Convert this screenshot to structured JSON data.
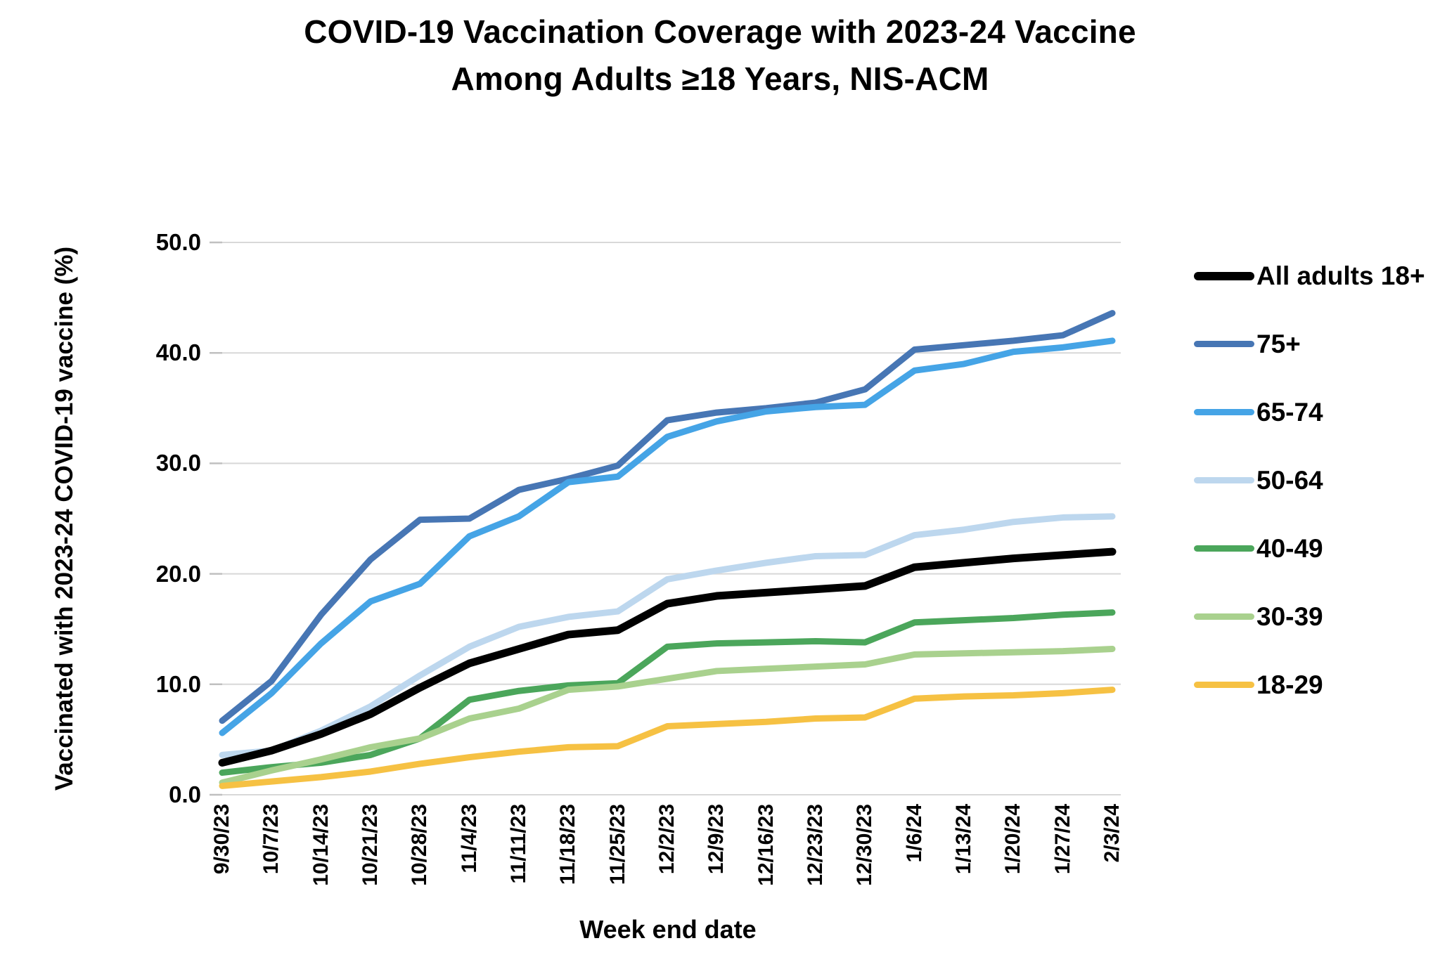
{
  "title": {
    "line1": "COVID-19 Vaccination Coverage with 2023-24 Vaccine",
    "line2": "Among Adults ≥18 Years, NIS-ACM"
  },
  "chart_data": {
    "type": "line",
    "title": "COVID-19 Vaccination Coverage with 2023-24 Vaccine Among Adults ≥18 Years, NIS-ACM",
    "xlabel": "Week end date",
    "ylabel": "Vaccinated with 2023-24 COVID-19 vaccine (%)",
    "ylim": [
      0,
      50
    ],
    "ytick_step": 10,
    "ytick_labels": [
      "0.0",
      "10.0",
      "20.0",
      "30.0",
      "40.0",
      "50.0"
    ],
    "grid": "horizontal",
    "gridline_color": "#d8d8d8",
    "tick_color": "#c0c0c0",
    "legend_position": "right",
    "categories": [
      "9/30/23",
      "10/7/23",
      "10/14/23",
      "10/21/23",
      "10/28/23",
      "11/4/23",
      "11/11/23",
      "11/18/23",
      "11/25/23",
      "12/2/23",
      "12/9/23",
      "12/16/23",
      "12/23/23",
      "12/30/23",
      "1/6/24",
      "1/13/24",
      "1/20/24",
      "1/27/24",
      "2/3/24"
    ],
    "series": [
      {
        "name": "All adults 18+",
        "color": "#000000",
        "width": 11,
        "values": [
          2.9,
          4.0,
          5.5,
          7.3,
          9.7,
          11.9,
          13.2,
          14.5,
          14.9,
          17.3,
          18.0,
          18.3,
          18.6,
          18.9,
          20.6,
          21.0,
          21.4,
          21.7,
          22.0
        ]
      },
      {
        "name": "75+",
        "color": "#4776B4",
        "width": 9,
        "values": [
          6.7,
          10.3,
          16.3,
          21.3,
          24.9,
          25.0,
          27.6,
          28.6,
          29.8,
          33.9,
          34.6,
          35.0,
          35.5,
          36.7,
          40.3,
          40.7,
          41.1,
          41.6,
          43.6
        ]
      },
      {
        "name": "65-74",
        "color": "#45A4E6",
        "width": 9,
        "values": [
          5.6,
          9.2,
          13.7,
          17.5,
          19.1,
          23.4,
          25.2,
          28.3,
          28.8,
          32.4,
          33.8,
          34.7,
          35.1,
          35.3,
          38.4,
          39.0,
          40.1,
          40.5,
          41.1
        ]
      },
      {
        "name": "50-64",
        "color": "#BDD7EE",
        "width": 9,
        "values": [
          3.6,
          4.0,
          5.8,
          8.0,
          10.8,
          13.4,
          15.2,
          16.1,
          16.6,
          19.5,
          20.3,
          21.0,
          21.6,
          21.7,
          23.5,
          24.0,
          24.7,
          25.1,
          25.2
        ]
      },
      {
        "name": "40-49",
        "color": "#4BA65B",
        "width": 9,
        "values": [
          2.0,
          2.5,
          2.9,
          3.6,
          5.1,
          8.6,
          9.4,
          9.9,
          10.1,
          13.4,
          13.7,
          13.8,
          13.9,
          13.8,
          15.6,
          15.8,
          16.0,
          16.3,
          16.5
        ]
      },
      {
        "name": "30-39",
        "color": "#A9D18E",
        "width": 9,
        "values": [
          1.1,
          2.2,
          3.2,
          4.3,
          5.1,
          6.9,
          7.8,
          9.5,
          9.8,
          10.5,
          11.2,
          11.4,
          11.6,
          11.8,
          12.7,
          12.8,
          12.9,
          13.0,
          13.2
        ]
      },
      {
        "name": "18-29",
        "color": "#F6C143",
        "width": 9,
        "values": [
          0.8,
          1.2,
          1.6,
          2.1,
          2.8,
          3.4,
          3.9,
          4.3,
          4.4,
          6.2,
          6.4,
          6.6,
          6.9,
          7.0,
          8.7,
          8.9,
          9.0,
          9.2,
          9.5
        ]
      }
    ]
  }
}
